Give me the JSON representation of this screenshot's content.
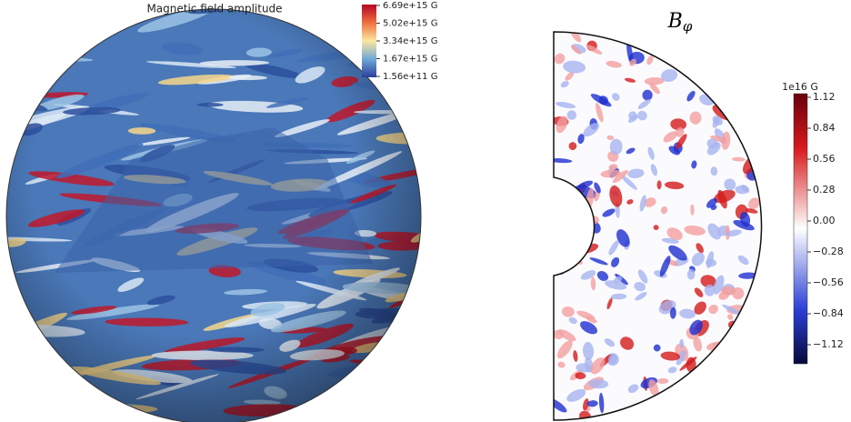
{
  "panels": [
    {
      "title": "Magnetic field amplitude",
      "colorbar": {
        "ticks": [
          "6.69e+15 G",
          "5.02e+15 G",
          "3.34e+15 G",
          "1.67e+15 G",
          "1.56e+11 G"
        ]
      }
    },
    {
      "title": {
        "symbol": "B",
        "subscript": "φ"
      },
      "colorbar": {
        "scale_label": "1e16 G",
        "ticks": [
          "1.12",
          "0.84",
          "0.56",
          "0.28",
          "0.00",
          "−0.28",
          "−0.56",
          "−0.84",
          "−1.12"
        ]
      }
    }
  ]
}
